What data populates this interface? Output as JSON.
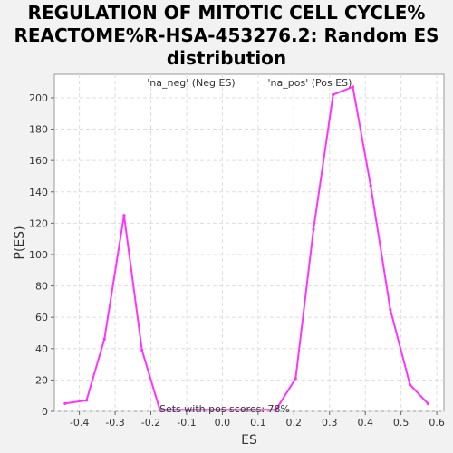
{
  "title_lines": [
    "REGULATION OF MITOTIC CELL CYCLE%",
    "REACTOME%R-HSA-453276.2: Random ES",
    "distribution"
  ],
  "chart_data": {
    "type": "line",
    "xlabel": "ES",
    "ylabel": "P(ES)",
    "xlim": [
      -0.47,
      0.62
    ],
    "ylim": [
      0,
      215
    ],
    "x_ticks": [
      "-0.4",
      "-0.3",
      "-0.2",
      "-0.1",
      "0.0",
      "0.1",
      "0.2",
      "0.3",
      "0.4",
      "0.5",
      "0.6"
    ],
    "y_ticks": [
      "0",
      "20",
      "40",
      "60",
      "80",
      "100",
      "120",
      "140",
      "160",
      "180",
      "200"
    ],
    "grid": true,
    "line_color": "#ff33ff",
    "legend": [
      {
        "text": "'na_neg' (Neg ES)",
        "color": "#0000cc"
      },
      {
        "text": "'na_pos' (Pos ES)",
        "color": "#cc0000"
      }
    ],
    "annotation": "Sets with pos scores: 78%",
    "series": [
      {
        "points": [
          [
            -0.44,
            5
          ],
          [
            -0.38,
            7
          ],
          [
            -0.33,
            46
          ],
          [
            -0.275,
            125
          ],
          [
            -0.225,
            39
          ],
          [
            -0.175,
            1
          ],
          [
            0.15,
            1
          ],
          [
            0.205,
            21
          ],
          [
            0.255,
            116
          ],
          [
            0.31,
            202
          ],
          [
            0.365,
            207
          ],
          [
            0.415,
            144
          ],
          [
            0.47,
            65
          ],
          [
            0.525,
            17
          ],
          [
            0.575,
            5
          ]
        ]
      }
    ]
  }
}
